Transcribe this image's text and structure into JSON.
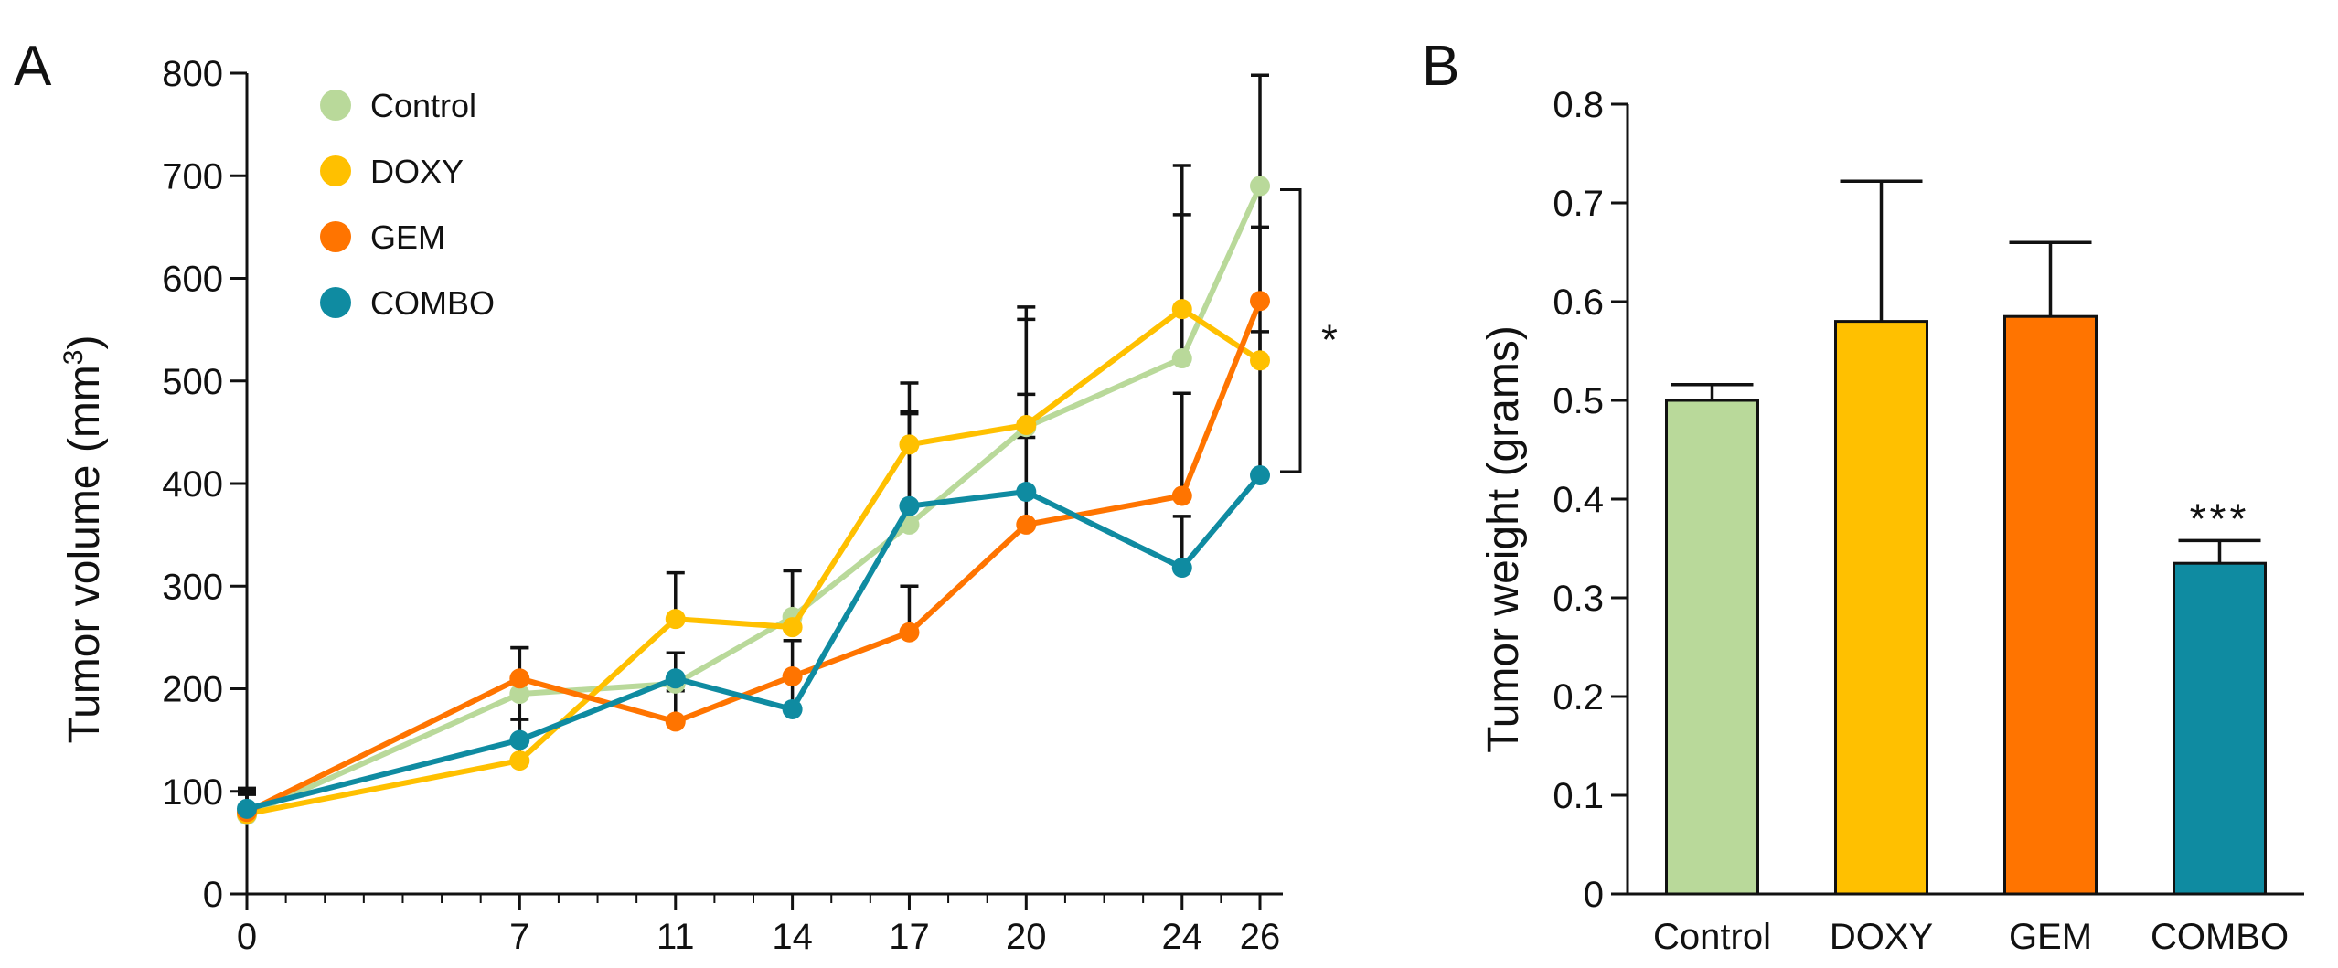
{
  "chart_data": [
    {
      "panel": "A",
      "type": "line",
      "title": "",
      "xlabel": "",
      "ylabel": "Tumor volume (mm",
      "ylabel_sup": "3",
      "ylabel_end": ")",
      "ylim": [
        0,
        800
      ],
      "yticks": [
        0,
        100,
        200,
        300,
        400,
        500,
        600,
        700,
        800
      ],
      "xlim": [
        0,
        26
      ],
      "xticks": [
        0,
        7,
        11,
        14,
        17,
        20,
        24,
        26
      ],
      "grid": false,
      "legend_position": "top-left",
      "series": [
        {
          "name": "Control",
          "color": "#b9d99a",
          "x": [
            0,
            7,
            11,
            14,
            17,
            20,
            24,
            26
          ],
          "y": [
            77,
            195,
            205,
            270,
            360,
            455,
            522,
            690
          ],
          "err": [
            20,
            45,
            30,
            45,
            110,
            105,
            140,
            108
          ]
        },
        {
          "name": "DOXY",
          "color": "#ffc000",
          "x": [
            0,
            7,
            11,
            14,
            17,
            20,
            24,
            26
          ],
          "y": [
            78,
            130,
            268,
            260,
            438,
            457,
            570,
            520
          ],
          "err": [
            20,
            40,
            45,
            55,
            60,
            115,
            140,
            130
          ]
        },
        {
          "name": "GEM",
          "color": "#ff7400",
          "x": [
            0,
            7,
            11,
            14,
            17,
            20,
            24,
            26
          ],
          "y": [
            80,
            210,
            168,
            212,
            255,
            360,
            388,
            578
          ],
          "err": [
            20,
            30,
            30,
            35,
            45,
            85,
            100,
            110
          ]
        },
        {
          "name": "COMBO",
          "color": "#0f8ba1",
          "x": [
            0,
            7,
            11,
            14,
            17,
            20,
            24,
            26
          ],
          "y": [
            83,
            150,
            210,
            180,
            378,
            392,
            318,
            408
          ],
          "err": [
            20,
            45,
            25,
            30,
            90,
            95,
            50,
            140
          ]
        }
      ],
      "annotations": [
        {
          "text": "*",
          "between": [
            "Control",
            "COMBO"
          ],
          "at_x": 26
        }
      ]
    },
    {
      "panel": "B",
      "type": "bar",
      "title": "",
      "xlabel": "",
      "ylabel": "Tumor weight (grams)",
      "ylim": [
        0,
        0.8
      ],
      "yticks": [
        "0",
        "0.1",
        "0.2",
        "0.3",
        "0.4",
        "0.5",
        "0.6",
        "0.7",
        "0.8"
      ],
      "categories": [
        "Control",
        "DOXY",
        "GEM",
        "COMBO"
      ],
      "values": [
        0.5,
        0.58,
        0.585,
        0.335
      ],
      "errors": [
        0.016,
        0.142,
        0.075,
        0.023
      ],
      "colors": [
        "#b9d99a",
        "#ffc000",
        "#ff7400",
        "#0f8ba1"
      ],
      "grid": false,
      "annotations": [
        {
          "text": "***",
          "category": "COMBO"
        }
      ]
    }
  ]
}
